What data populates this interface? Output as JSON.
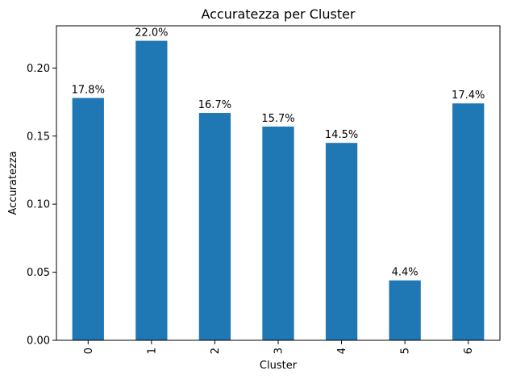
{
  "chart_data": {
    "type": "bar",
    "title": "Accuratezza per Cluster",
    "xlabel": "Cluster",
    "ylabel": "Accuratezza",
    "categories": [
      "0",
      "1",
      "2",
      "3",
      "4",
      "5",
      "6"
    ],
    "values": [
      0.178,
      0.22,
      0.167,
      0.157,
      0.145,
      0.044,
      0.174
    ],
    "data_labels": [
      "17.8%",
      "22.0%",
      "16.7%",
      "15.7%",
      "14.5%",
      "4.4%",
      "17.4%"
    ],
    "ylim": [
      0,
      0.231
    ],
    "yticks": [
      0.0,
      0.05,
      0.1,
      0.15,
      0.2
    ],
    "ytick_labels": [
      "0.00",
      "0.05",
      "0.10",
      "0.15",
      "0.20"
    ],
    "bar_color": "#1f77b4",
    "grid": false,
    "legend": "none"
  }
}
